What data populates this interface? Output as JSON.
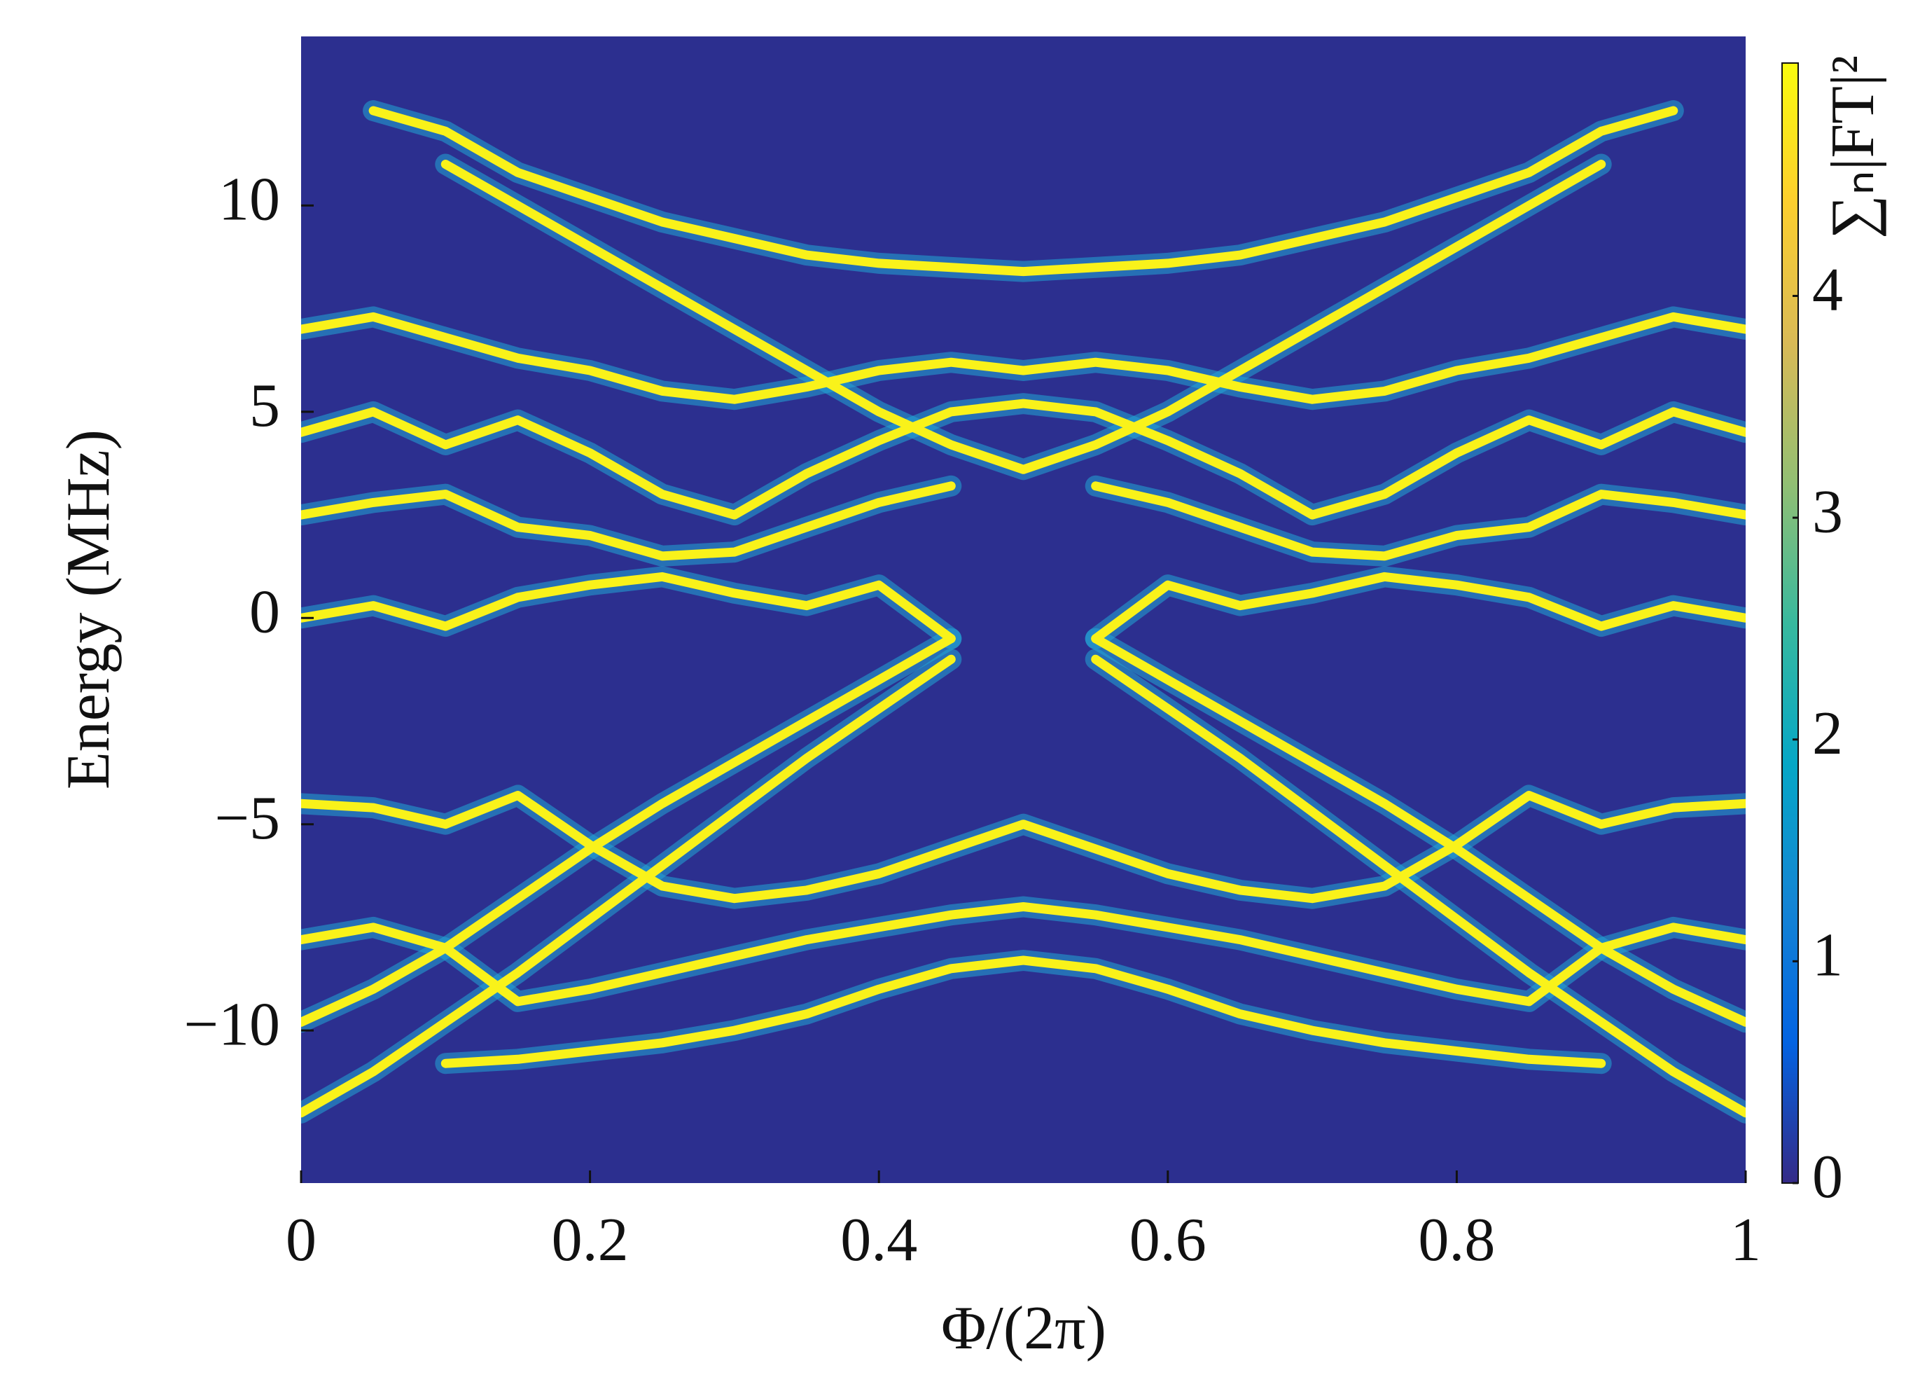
{
  "chart_data": {
    "type": "line",
    "x_label": "Φ/(2π)",
    "y_label": "Energy (MHz)",
    "colorbar_label": "∑ₙ|FT|²",
    "x": [
      0,
      0.05,
      0.1,
      0.15,
      0.2,
      0.25,
      0.3,
      0.35,
      0.4,
      0.45,
      0.5,
      0.55,
      0.6,
      0.65,
      0.7,
      0.75,
      0.8,
      0.85,
      0.9,
      0.95,
      1
    ],
    "series": [
      {
        "values": [
          null,
          12.3,
          11.8,
          10.8,
          10.2,
          9.6,
          9.2,
          8.8,
          8.6,
          8.5,
          8.4,
          8.5,
          8.6,
          8.8,
          9.2,
          9.6,
          10.2,
          10.8,
          11.8,
          12.3,
          null
        ]
      },
      {
        "values": [
          null,
          null,
          11.0,
          10.0,
          9.0,
          8.0,
          7.0,
          6.0,
          5.0,
          4.2,
          3.6,
          4.2,
          5.0,
          6.0,
          7.0,
          8.0,
          9.0,
          10.0,
          11.0,
          null,
          null
        ]
      },
      {
        "values": [
          7.0,
          7.3,
          6.8,
          6.3,
          6.0,
          5.5,
          5.3,
          5.6,
          6.0,
          6.2,
          6.0,
          6.2,
          6.0,
          5.6,
          5.3,
          5.5,
          6.0,
          6.3,
          6.8,
          7.3,
          7.0
        ]
      },
      {
        "values": [
          4.5,
          5.0,
          4.2,
          4.8,
          4.0,
          3.0,
          2.5,
          3.5,
          4.3,
          5.0,
          5.2,
          5.0,
          4.3,
          3.5,
          2.5,
          3.0,
          4.0,
          4.8,
          4.2,
          5.0,
          4.5
        ]
      },
      {
        "values": [
          2.5,
          2.8,
          3.0,
          2.2,
          2.0,
          1.5,
          1.6,
          2.2,
          2.8,
          3.2,
          null,
          3.2,
          2.8,
          2.2,
          1.6,
          1.5,
          2.0,
          2.2,
          3.0,
          2.8,
          2.5
        ]
      },
      {
        "values": [
          0.0,
          0.3,
          -0.2,
          0.5,
          0.8,
          1.0,
          0.6,
          0.3,
          0.8,
          -0.5,
          null,
          -0.5,
          0.8,
          0.3,
          0.6,
          1.0,
          0.8,
          0.5,
          -0.2,
          0.3,
          0.0
        ]
      },
      {
        "values": [
          -12,
          -11,
          -9.8,
          -8.6,
          -7.3,
          -6.0,
          -4.7,
          -3.4,
          -2.2,
          -1.0,
          null,
          -1.0,
          -2.2,
          -3.4,
          -4.7,
          -6.0,
          -7.3,
          -8.6,
          -9.8,
          -11,
          -12
        ]
      },
      {
        "values": [
          -9.8,
          -9.0,
          -8.0,
          -6.8,
          -5.6,
          -4.5,
          -3.5,
          -2.5,
          -1.5,
          -0.5,
          null,
          -0.5,
          -1.5,
          -2.5,
          -3.5,
          -4.5,
          -5.6,
          -6.8,
          -8.0,
          -9.0,
          -9.8
        ]
      },
      {
        "values": [
          -4.5,
          -4.6,
          -5.0,
          -4.3,
          -5.5,
          -6.5,
          -6.8,
          -6.6,
          -6.2,
          -5.6,
          -5.0,
          -5.6,
          -6.2,
          -6.6,
          -6.8,
          -6.5,
          -5.5,
          -4.3,
          -5.0,
          -4.6,
          -4.5
        ]
      },
      {
        "values": [
          -7.8,
          -7.5,
          -8.0,
          -9.3,
          -9.0,
          -8.6,
          -8.2,
          -7.8,
          -7.5,
          -7.2,
          -7.0,
          -7.2,
          -7.5,
          -7.8,
          -8.2,
          -8.6,
          -9.0,
          -9.3,
          -8.0,
          -7.5,
          -7.8
        ]
      },
      {
        "values": [
          null,
          null,
          -10.8,
          -10.7,
          -10.5,
          -10.3,
          -10.0,
          -9.6,
          -9.0,
          -8.5,
          -8.3,
          -8.5,
          -9.0,
          -9.6,
          -10.0,
          -10.3,
          -10.5,
          -10.7,
          -10.8,
          null,
          null
        ]
      }
    ],
    "line_color": "#f9f21a",
    "glow_color": "#22a6d6",
    "background": "#2c2f8f",
    "xlim": [
      0,
      1
    ],
    "xticks": [
      0,
      0.2,
      0.4,
      0.6,
      0.8,
      1
    ],
    "ylim": [
      -13.7,
      14.1
    ],
    "yticks": [
      {
        "value": -10,
        "label": "−10"
      },
      {
        "value": -5,
        "label": "−5"
      },
      0,
      5,
      10
    ],
    "clim": [
      0,
      5.05
    ],
    "cticks": [
      0,
      1,
      2,
      3,
      4
    ],
    "colormap": [
      "#352a87",
      "#0363e1",
      "#1485d4",
      "#06a7c6",
      "#38b99e",
      "#92bf73",
      "#d9ba56",
      "#fcce2e",
      "#f9fb0e"
    ]
  }
}
